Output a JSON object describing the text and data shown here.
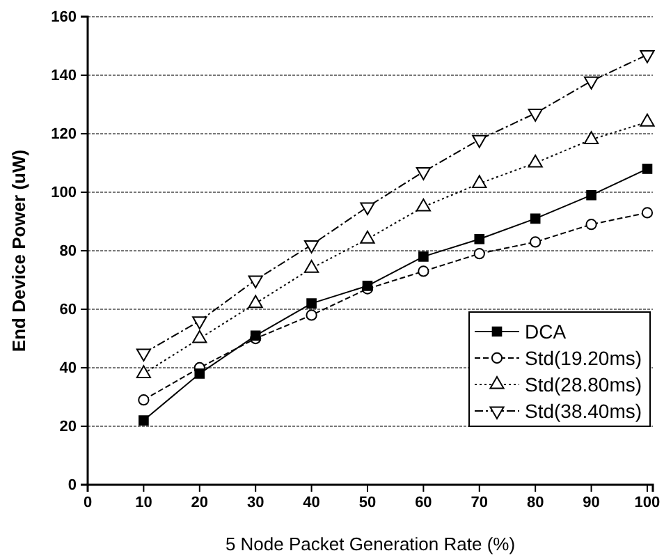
{
  "chart_data": {
    "type": "line",
    "xlabel": "5 Node Packet Generation Rate (%)",
    "ylabel": "End Device Power (uW)",
    "x": [
      10,
      20,
      30,
      40,
      50,
      60,
      70,
      80,
      90,
      100
    ],
    "series": [
      {
        "name": "DCA",
        "color": "#000000",
        "marker": "square",
        "line_style": "solid",
        "values": [
          22,
          38,
          51,
          62,
          68,
          78,
          84,
          91,
          99,
          108
        ]
      },
      {
        "name": "Std(19.20ms)",
        "color": "#000000",
        "marker": "circle",
        "line_style": "dashed",
        "values": [
          29,
          40,
          50,
          58,
          67,
          73,
          79,
          83,
          89,
          93
        ]
      },
      {
        "name": "Std(28.80ms)",
        "color": "#000000",
        "marker": "triangle",
        "line_style": "dotted",
        "values": [
          38,
          50,
          62,
          74,
          84,
          95,
          103,
          110,
          118,
          124
        ]
      },
      {
        "name": "Std(38.40ms)",
        "color": "#000000",
        "marker": "triangle-down",
        "line_style": "dashdot",
        "values": [
          45,
          56,
          70,
          82,
          95,
          107,
          118,
          127,
          138,
          147
        ]
      }
    ],
    "xlim": [
      0,
      101
    ],
    "xticks": [
      0,
      10,
      20,
      30,
      40,
      50,
      60,
      70,
      80,
      90,
      100
    ],
    "ylim": [
      0,
      160
    ],
    "yticks": [
      0,
      20,
      40,
      60,
      80,
      100,
      120,
      140,
      160
    ],
    "grid": "y",
    "legend": "bottom right"
  }
}
